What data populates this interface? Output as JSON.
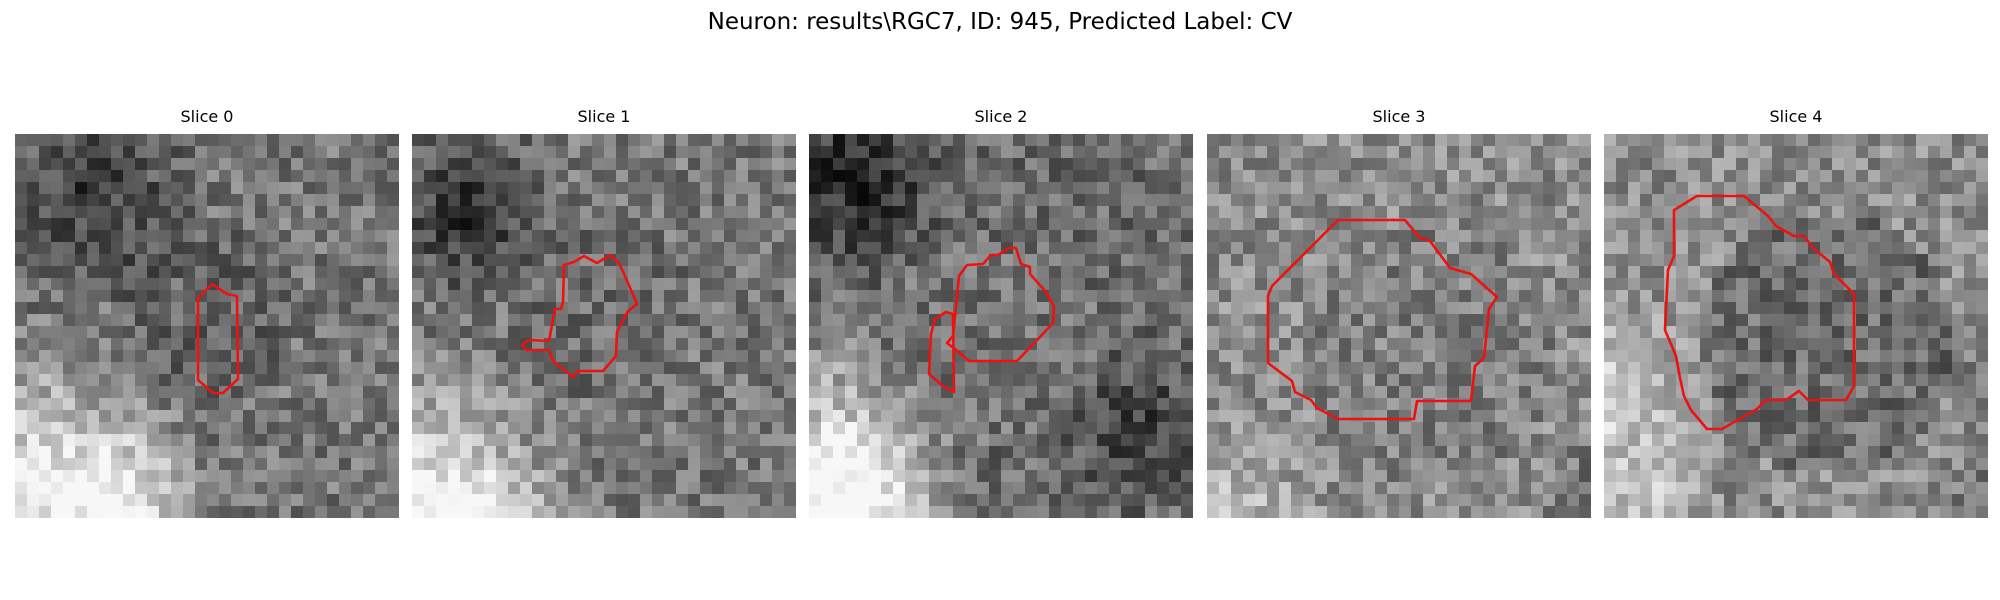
{
  "figure": {
    "title": "Neuron: results\\RGC7, ID: 945, Predicted Label: CV"
  },
  "slices": [
    {
      "label": "Slice 0"
    },
    {
      "label": "Slice 1"
    },
    {
      "label": "Slice 2"
    },
    {
      "label": "Slice 3"
    },
    {
      "label": "Slice 4"
    }
  ],
  "colors": {
    "contour": "#ee1111"
  }
}
